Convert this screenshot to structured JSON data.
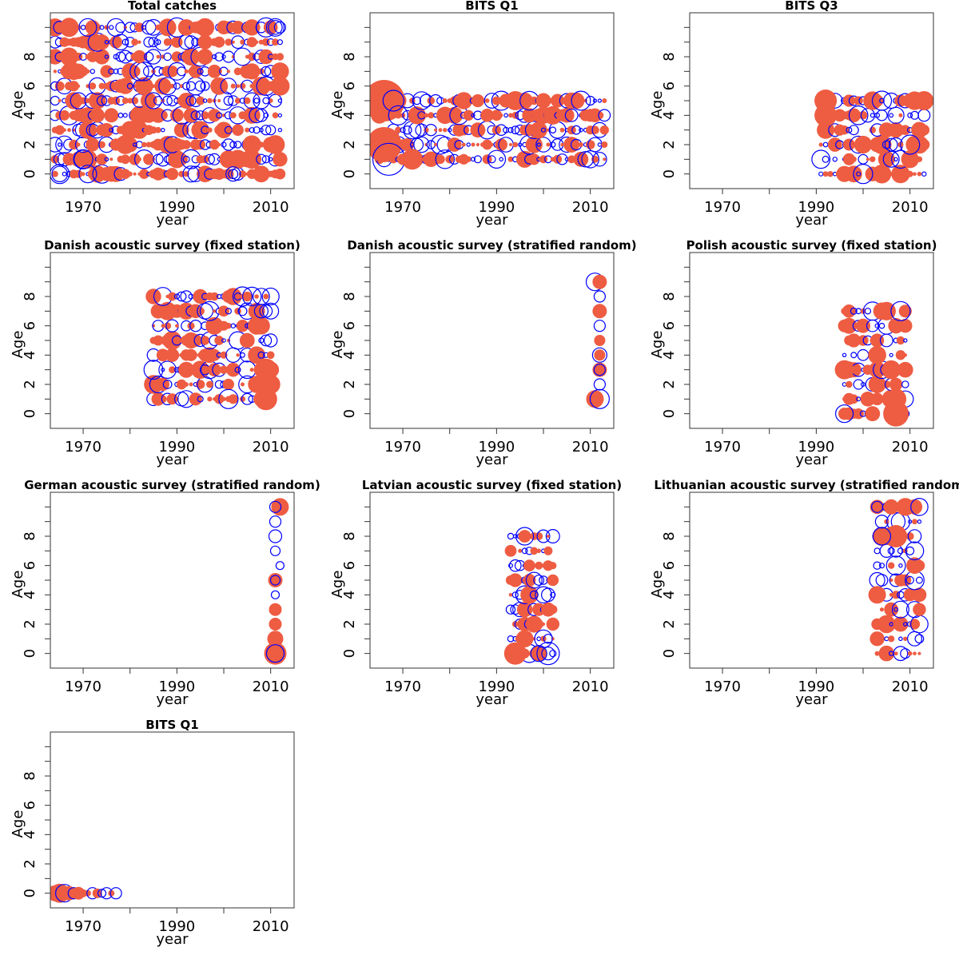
{
  "colors": {
    "positive": "#EE5C42",
    "negative": "#0000FF",
    "frame": "#333333"
  },
  "chart_data": [
    {
      "type": "scatter",
      "title": "Total catches",
      "xlabel": "year",
      "ylabel": "Age",
      "xlim": [
        1963,
        2015
      ],
      "ylim": [
        -1,
        11
      ],
      "xticks": [
        1970,
        1990,
        2010
      ],
      "yticks": [
        0,
        2,
        4,
        6,
        8
      ],
      "xticklabels": [
        "1970",
        "1990",
        "2010"
      ],
      "yticklabels": [
        "0",
        "2",
        "4",
        "6",
        "8"
      ],
      "year_range": [
        1964,
        2012
      ],
      "age_range": [
        0,
        10
      ],
      "dense": true,
      "density": 0.95,
      "seed": 11,
      "points": [
        {
          "x": 2002,
          "y": 0,
          "r": 9,
          "s": "n"
        },
        {
          "x": 1993,
          "y": 0,
          "r": 10,
          "s": "n"
        },
        {
          "x": 1970,
          "y": 1,
          "r": 12,
          "s": "n"
        },
        {
          "x": 1971,
          "y": 0,
          "r": 11,
          "s": "n"
        },
        {
          "x": 2011,
          "y": 10,
          "r": 11,
          "s": "n"
        },
        {
          "x": 1971,
          "y": 10,
          "r": 11,
          "s": "n"
        },
        {
          "x": 1967,
          "y": 10,
          "r": 12,
          "s": "p"
        },
        {
          "x": 1965,
          "y": 0,
          "r": 12,
          "s": "n"
        }
      ]
    },
    {
      "type": "scatter",
      "title": "BITS Q1",
      "xlabel": "year",
      "ylabel": "Age",
      "xlim": [
        1963,
        2015
      ],
      "ylim": [
        -1,
        11
      ],
      "xticks": [
        1970,
        1990,
        2010
      ],
      "yticks": [
        0,
        2,
        4,
        6,
        8
      ],
      "xticklabels": [
        "1970",
        "1990",
        "2010"
      ],
      "yticklabels": [
        "0",
        "2",
        "4",
        "6",
        "8"
      ],
      "year_range": [
        1965,
        2013
      ],
      "age_range": [
        1,
        5
      ],
      "dense": true,
      "density": 0.95,
      "seed": 23,
      "points": [
        {
          "x": 1966,
          "y": 5,
          "r": 26,
          "s": "p"
        },
        {
          "x": 1966,
          "y": 2,
          "r": 22,
          "s": "p"
        },
        {
          "x": 1967,
          "y": 1,
          "r": 20,
          "s": "n"
        },
        {
          "x": 1968,
          "y": 5,
          "r": 13,
          "s": "n"
        },
        {
          "x": 1969,
          "y": 4,
          "r": 12,
          "s": "n"
        },
        {
          "x": 1972,
          "y": 1,
          "r": 13,
          "s": "p"
        }
      ]
    },
    {
      "type": "scatter",
      "title": "BITS Q3",
      "xlabel": "year",
      "ylabel": "Age",
      "xlim": [
        1963,
        2015
      ],
      "ylim": [
        -1,
        11
      ],
      "xticks": [
        1970,
        1990,
        2010
      ],
      "yticks": [
        0,
        2,
        4,
        6,
        8
      ],
      "xticklabels": [
        "1970",
        "1990",
        "2010"
      ],
      "yticklabels": [
        "0",
        "2",
        "4",
        "6",
        "8"
      ],
      "year_range": [
        1991,
        2013
      ],
      "age_range": [
        0,
        5
      ],
      "dense": true,
      "density": 0.85,
      "seed": 37,
      "points": [
        {
          "x": 1992,
          "y": 5,
          "r": 14,
          "s": "p"
        },
        {
          "x": 1992,
          "y": 4,
          "r": 14,
          "s": "p"
        },
        {
          "x": 2000,
          "y": 0,
          "r": 12,
          "s": "n"
        },
        {
          "x": 2004,
          "y": 5,
          "r": 12,
          "s": "n"
        },
        {
          "x": 2010,
          "y": 2,
          "r": 12,
          "s": "n"
        },
        {
          "x": 2013,
          "y": 5,
          "r": 12,
          "s": "p"
        }
      ]
    },
    {
      "type": "scatter",
      "title": "Danish acoustic survey (fixed station)",
      "xlabel": "year",
      "ylabel": "Age",
      "xlim": [
        1963,
        2015
      ],
      "ylim": [
        -1,
        11
      ],
      "xticks": [
        1970,
        1990,
        2010
      ],
      "yticks": [
        0,
        2,
        4,
        6,
        8
      ],
      "xticklabels": [
        "1970",
        "1990",
        "2010"
      ],
      "yticklabels": [
        "0",
        "2",
        "4",
        "6",
        "8"
      ],
      "year_range": [
        1985,
        2010
      ],
      "age_range": [
        1,
        8
      ],
      "dense": true,
      "density": 0.9,
      "seed": 51,
      "points": [
        {
          "x": 2009,
          "y": 1,
          "r": 14,
          "s": "p"
        },
        {
          "x": 2009,
          "y": 3,
          "r": 14,
          "s": "p"
        },
        {
          "x": 2010,
          "y": 2,
          "r": 12,
          "s": "p"
        },
        {
          "x": 2004,
          "y": 8,
          "r": 12,
          "s": "n"
        },
        {
          "x": 2001,
          "y": 1,
          "r": 12,
          "s": "n"
        }
      ]
    },
    {
      "type": "scatter",
      "title": "Danish acoustic survey (stratified random)",
      "xlabel": "year",
      "ylabel": "Age",
      "xlim": [
        1963,
        2015
      ],
      "ylim": [
        -1,
        11
      ],
      "xticks": [
        1970,
        1990,
        2010
      ],
      "yticks": [
        0,
        2,
        4,
        6,
        8
      ],
      "xticklabels": [
        "1970",
        "1990",
        "2010"
      ],
      "yticklabels": [
        "0",
        "2",
        "4",
        "6",
        "8"
      ],
      "dense": false,
      "points": [
        {
          "x": 2011,
          "y": 9,
          "r": 11,
          "s": "n"
        },
        {
          "x": 2012,
          "y": 9,
          "r": 9,
          "s": "p"
        },
        {
          "x": 2012,
          "y": 8,
          "r": 7,
          "s": "n"
        },
        {
          "x": 2012,
          "y": 7,
          "r": 9,
          "s": "p"
        },
        {
          "x": 2012,
          "y": 6,
          "r": 7,
          "s": "n"
        },
        {
          "x": 2012,
          "y": 5,
          "r": 7,
          "s": "p"
        },
        {
          "x": 2012,
          "y": 4,
          "r": 7,
          "s": "p"
        },
        {
          "x": 2012,
          "y": 4,
          "r": 9,
          "s": "n"
        },
        {
          "x": 2012,
          "y": 3,
          "r": 9,
          "s": "p"
        },
        {
          "x": 2012,
          "y": 3,
          "r": 7,
          "s": "n"
        },
        {
          "x": 2012,
          "y": 2,
          "r": 7,
          "s": "n"
        },
        {
          "x": 2011,
          "y": 1,
          "r": 11,
          "s": "p"
        },
        {
          "x": 2012,
          "y": 1,
          "r": 12,
          "s": "n"
        }
      ]
    },
    {
      "type": "scatter",
      "title": "Polish acoustic survey (fixed station)",
      "xlabel": "year",
      "ylabel": "Age",
      "xlim": [
        1963,
        2015
      ],
      "ylim": [
        -1,
        11
      ],
      "xticks": [
        1970,
        1990,
        2010
      ],
      "yticks": [
        0,
        2,
        4,
        6,
        8
      ],
      "xticklabels": [
        "1970",
        "1990",
        "2010"
      ],
      "yticklabels": [
        "0",
        "2",
        "4",
        "6",
        "8"
      ],
      "year_range": [
        1996,
        2009
      ],
      "age_range": [
        0,
        7
      ],
      "dense": true,
      "density": 0.85,
      "seed": 67,
      "points": [
        {
          "x": 2007,
          "y": 0,
          "r": 16,
          "s": "p"
        },
        {
          "x": 2007,
          "y": 1,
          "r": 13,
          "s": "p"
        },
        {
          "x": 1996,
          "y": 0,
          "r": 11,
          "s": "n"
        },
        {
          "x": 1996,
          "y": 3,
          "r": 12,
          "s": "p"
        },
        {
          "x": 2008,
          "y": 7,
          "r": 12,
          "s": "n"
        }
      ]
    },
    {
      "type": "scatter",
      "title": "German acoustic survey (stratified random)",
      "xlabel": "year",
      "ylabel": "Age",
      "xlim": [
        1963,
        2015
      ],
      "ylim": [
        -1,
        11
      ],
      "xticks": [
        1970,
        1990,
        2010
      ],
      "yticks": [
        0,
        2,
        4,
        6,
        8
      ],
      "xticklabels": [
        "1970",
        "1990",
        "2010"
      ],
      "yticklabels": [
        "0",
        "2",
        "4",
        "6",
        "8"
      ],
      "dense": false,
      "points": [
        {
          "x": 2012,
          "y": 10,
          "r": 11,
          "s": "p"
        },
        {
          "x": 2011,
          "y": 10,
          "r": 7,
          "s": "n"
        },
        {
          "x": 2011,
          "y": 9,
          "r": 7,
          "s": "n"
        },
        {
          "x": 2011,
          "y": 8,
          "r": 8,
          "s": "n"
        },
        {
          "x": 2011,
          "y": 7,
          "r": 6,
          "s": "n"
        },
        {
          "x": 2012,
          "y": 6,
          "r": 5,
          "s": "n"
        },
        {
          "x": 2011,
          "y": 5,
          "r": 9,
          "s": "p"
        },
        {
          "x": 2011,
          "y": 5,
          "r": 6,
          "s": "n"
        },
        {
          "x": 2011,
          "y": 4,
          "r": 5,
          "s": "n"
        },
        {
          "x": 2011,
          "y": 3,
          "r": 8,
          "s": "p"
        },
        {
          "x": 2011,
          "y": 2,
          "r": 8,
          "s": "p"
        },
        {
          "x": 2011,
          "y": 1,
          "r": 10,
          "s": "p"
        },
        {
          "x": 2011,
          "y": 0,
          "r": 14,
          "s": "p"
        },
        {
          "x": 2011,
          "y": 0,
          "r": 11,
          "s": "n"
        }
      ]
    },
    {
      "type": "scatter",
      "title": "Latvian acoustic survey (fixed station)",
      "xlabel": "year",
      "ylabel": "Age",
      "xlim": [
        1963,
        2015
      ],
      "ylim": [
        -1,
        11
      ],
      "xticks": [
        1970,
        1990,
        2010
      ],
      "yticks": [
        0,
        2,
        4,
        6,
        8
      ],
      "xticklabels": [
        "1970",
        "1990",
        "2010"
      ],
      "yticklabels": [
        "0",
        "2",
        "4",
        "6",
        "8"
      ],
      "year_range": [
        1993,
        2002
      ],
      "age_range": [
        0,
        8
      ],
      "dense": true,
      "density": 0.85,
      "seed": 83,
      "points": [
        {
          "x": 1994,
          "y": 0,
          "r": 14,
          "s": "p"
        },
        {
          "x": 2001,
          "y": 0,
          "r": 14,
          "s": "n"
        },
        {
          "x": 2000,
          "y": 1,
          "r": 11,
          "s": "n"
        },
        {
          "x": 1999,
          "y": 0,
          "r": 10,
          "s": "n"
        },
        {
          "x": 1996,
          "y": 8,
          "r": 11,
          "s": "n"
        }
      ]
    },
    {
      "type": "scatter",
      "title": "Lithuanian acoustic survey (stratified random)",
      "xlabel": "year",
      "ylabel": "Age",
      "xlim": [
        1963,
        2015
      ],
      "ylim": [
        -1,
        11
      ],
      "xticks": [
        1970,
        1990,
        2010
      ],
      "yticks": [
        0,
        2,
        4,
        6,
        8
      ],
      "xticklabels": [
        "1970",
        "1990",
        "2010"
      ],
      "yticklabels": [
        "0",
        "2",
        "4",
        "6",
        "8"
      ],
      "year_range": [
        2003,
        2012
      ],
      "age_range": [
        0,
        10
      ],
      "dense": true,
      "density": 0.85,
      "seed": 97,
      "points": [
        {
          "x": 2007,
          "y": 8,
          "r": 14,
          "s": "p"
        },
        {
          "x": 2004,
          "y": 8,
          "r": 11,
          "s": "n"
        },
        {
          "x": 2003,
          "y": 4,
          "r": 11,
          "s": "p"
        },
        {
          "x": 2003,
          "y": 10,
          "r": 7,
          "s": "n"
        }
      ]
    },
    {
      "type": "scatter",
      "title": "BITS Q1",
      "xlabel": "year",
      "ylabel": "Age",
      "xlim": [
        1963,
        2015
      ],
      "ylim": [
        -1,
        11
      ],
      "xticks": [
        1970,
        1990,
        2010
      ],
      "yticks": [
        0,
        2,
        4,
        6,
        8
      ],
      "xticklabels": [
        "1970",
        "1990",
        "2010"
      ],
      "yticklabels": [
        "0",
        "2",
        "4",
        "6",
        "8"
      ],
      "dense": false,
      "points": [
        {
          "x": 1964,
          "y": 0,
          "r": 10,
          "s": "p"
        },
        {
          "x": 1965,
          "y": 0,
          "r": 12,
          "s": "p"
        },
        {
          "x": 1966,
          "y": 0,
          "r": 11,
          "s": "n"
        },
        {
          "x": 1967,
          "y": 0,
          "r": 9,
          "s": "p"
        },
        {
          "x": 1968,
          "y": 0,
          "r": 7,
          "s": "n"
        },
        {
          "x": 1969,
          "y": 0,
          "r": 8,
          "s": "p"
        },
        {
          "x": 1970,
          "y": 0,
          "r": 5,
          "s": "p"
        },
        {
          "x": 1971,
          "y": 0,
          "r": 4,
          "s": "p"
        },
        {
          "x": 1972,
          "y": 0,
          "r": 7,
          "s": "n"
        },
        {
          "x": 1973,
          "y": 0,
          "r": 6,
          "s": "p"
        },
        {
          "x": 1974,
          "y": 0,
          "r": 5,
          "s": "n"
        },
        {
          "x": 1975,
          "y": 0,
          "r": 7,
          "s": "n"
        },
        {
          "x": 1976,
          "y": 0,
          "r": 4,
          "s": "p"
        },
        {
          "x": 1977,
          "y": 0,
          "r": 7,
          "s": "n"
        }
      ]
    }
  ]
}
